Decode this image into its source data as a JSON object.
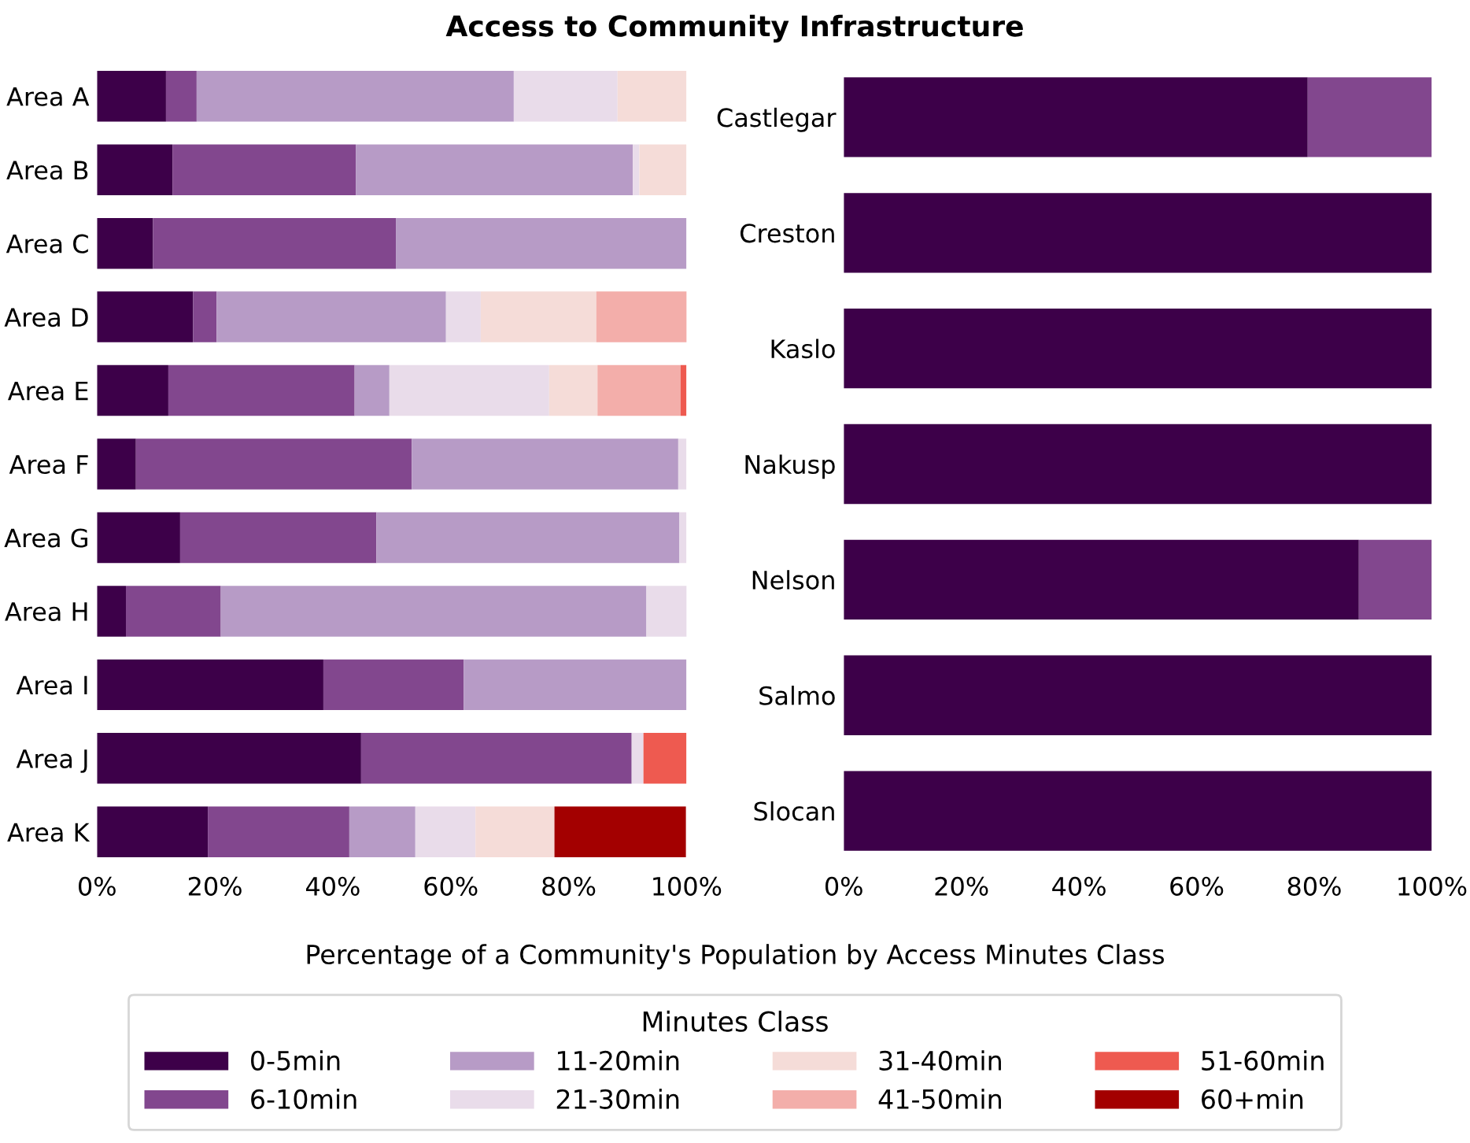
{
  "chart_data": [
    {
      "type": "bar",
      "orientation": "horizontal",
      "stacked": true,
      "title": "Access to Community Infrastructure",
      "xlabel": "Percentage of a Community's Population by Access Minutes Class",
      "legend_title": "Minutes Class",
      "legend": "bottom",
      "grid": false,
      "categories": [
        "Area A",
        "Area B",
        "Area C",
        "Area D",
        "Area E",
        "Area F",
        "Area G",
        "Area H",
        "Area I",
        "Area J",
        "Area K"
      ],
      "xlim": [
        0,
        100
      ],
      "xticks": [
        {
          "value": 0,
          "label": "0%"
        },
        {
          "value": 20,
          "label": "20%"
        },
        {
          "value": 40,
          "label": "40%"
        },
        {
          "value": 60,
          "label": "60%"
        },
        {
          "value": 80,
          "label": "80%"
        },
        {
          "value": 100,
          "label": "100%"
        }
      ],
      "series": [
        {
          "name": "0-5min",
          "color": "#3d0049",
          "values": [
            11.7,
            12.8,
            9.5,
            16.3,
            12.1,
            6.6,
            14.1,
            4.9,
            38.4,
            44.8,
            18.8
          ]
        },
        {
          "name": "6-10min",
          "color": "#82478e",
          "values": [
            5.2,
            31.1,
            41.2,
            4.0,
            31.6,
            46.8,
            33.3,
            16.1,
            23.8,
            45.9,
            24.0
          ]
        },
        {
          "name": "11-20min",
          "color": "#b79bc6",
          "values": [
            53.8,
            47.0,
            49.3,
            38.9,
            5.9,
            45.2,
            51.4,
            72.2,
            37.8,
            null,
            11.2
          ]
        },
        {
          "name": "21-30min",
          "color": "#e9dcea",
          "values": [
            17.6,
            1.1,
            null,
            5.9,
            27.1,
            1.4,
            1.2,
            6.9,
            null,
            2.0,
            10.2
          ]
        },
        {
          "name": "31-40min",
          "color": "#f5dcd8",
          "values": [
            11.7,
            8.0,
            null,
            19.6,
            8.2,
            null,
            null,
            null,
            null,
            null,
            13.4
          ]
        },
        {
          "name": "41-50min",
          "color": "#f3aeaa",
          "values": [
            null,
            null,
            null,
            15.4,
            14.1,
            null,
            null,
            null,
            null,
            null,
            null
          ]
        },
        {
          "name": "51-60min",
          "color": "#ee5a50",
          "values": [
            null,
            null,
            null,
            null,
            1.0,
            null,
            null,
            null,
            null,
            7.3,
            null
          ]
        },
        {
          "name": "60+min",
          "color": "#a30000",
          "values": [
            null,
            null,
            null,
            null,
            null,
            null,
            null,
            null,
            null,
            null,
            22.3
          ]
        }
      ]
    },
    {
      "type": "bar",
      "orientation": "horizontal",
      "stacked": true,
      "grid": false,
      "categories": [
        "Castlegar",
        "Creston",
        "Kaslo",
        "Nakusp",
        "Nelson",
        "Salmo",
        "Slocan"
      ],
      "xlim": [
        0,
        100
      ],
      "xticks": [
        {
          "value": 0,
          "label": "0%"
        },
        {
          "value": 20,
          "label": "20%"
        },
        {
          "value": 40,
          "label": "40%"
        },
        {
          "value": 60,
          "label": "60%"
        },
        {
          "value": 80,
          "label": "80%"
        },
        {
          "value": 100,
          "label": "100%"
        }
      ],
      "series": [
        {
          "name": "0-5min",
          "color": "#3d0049",
          "values": [
            78.9,
            100,
            100,
            100,
            87.6,
            100,
            100
          ]
        },
        {
          "name": "6-10min",
          "color": "#82478e",
          "values": [
            21.1,
            null,
            null,
            null,
            12.4,
            null,
            null
          ]
        }
      ]
    }
  ]
}
